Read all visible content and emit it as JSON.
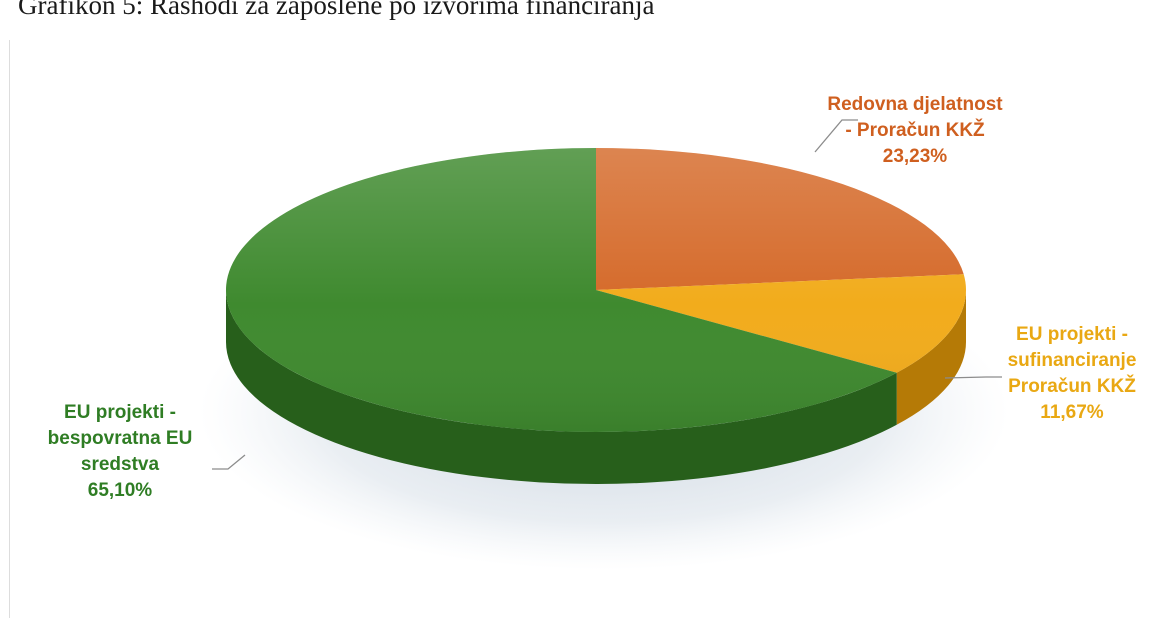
{
  "title": "Grafikon 5: Rashodi za zaposlene po izvorima financiranja",
  "chart_data": {
    "type": "pie",
    "title": "Grafikon 5: Rashodi za zaposlene po izvorima financiranja",
    "style": "3d",
    "slices": [
      {
        "label_lines": [
          "Redovna djelatnost",
          "- Proračun KKŽ"
        ],
        "value": 23.23,
        "value_label": "23,23%",
        "color": "#d56a2a",
        "side_color": "#9e4714",
        "text_color": "#cf5f1f"
      },
      {
        "label_lines": [
          "EU projekti -",
          "sufinanciranje",
          "Proračun KKŽ"
        ],
        "value": 11.67,
        "value_label": "11,67%",
        "color": "#f2ac1c",
        "side_color": "#b57a06",
        "text_color": "#e9a813"
      },
      {
        "label_lines": [
          "EU projekti -",
          "bespovratna EU",
          "sredstva"
        ],
        "value": 65.1,
        "value_label": "65,10%",
        "color": "#3f8a2f",
        "side_color": "#275f1b",
        "text_color": "#2f7d24"
      }
    ]
  }
}
